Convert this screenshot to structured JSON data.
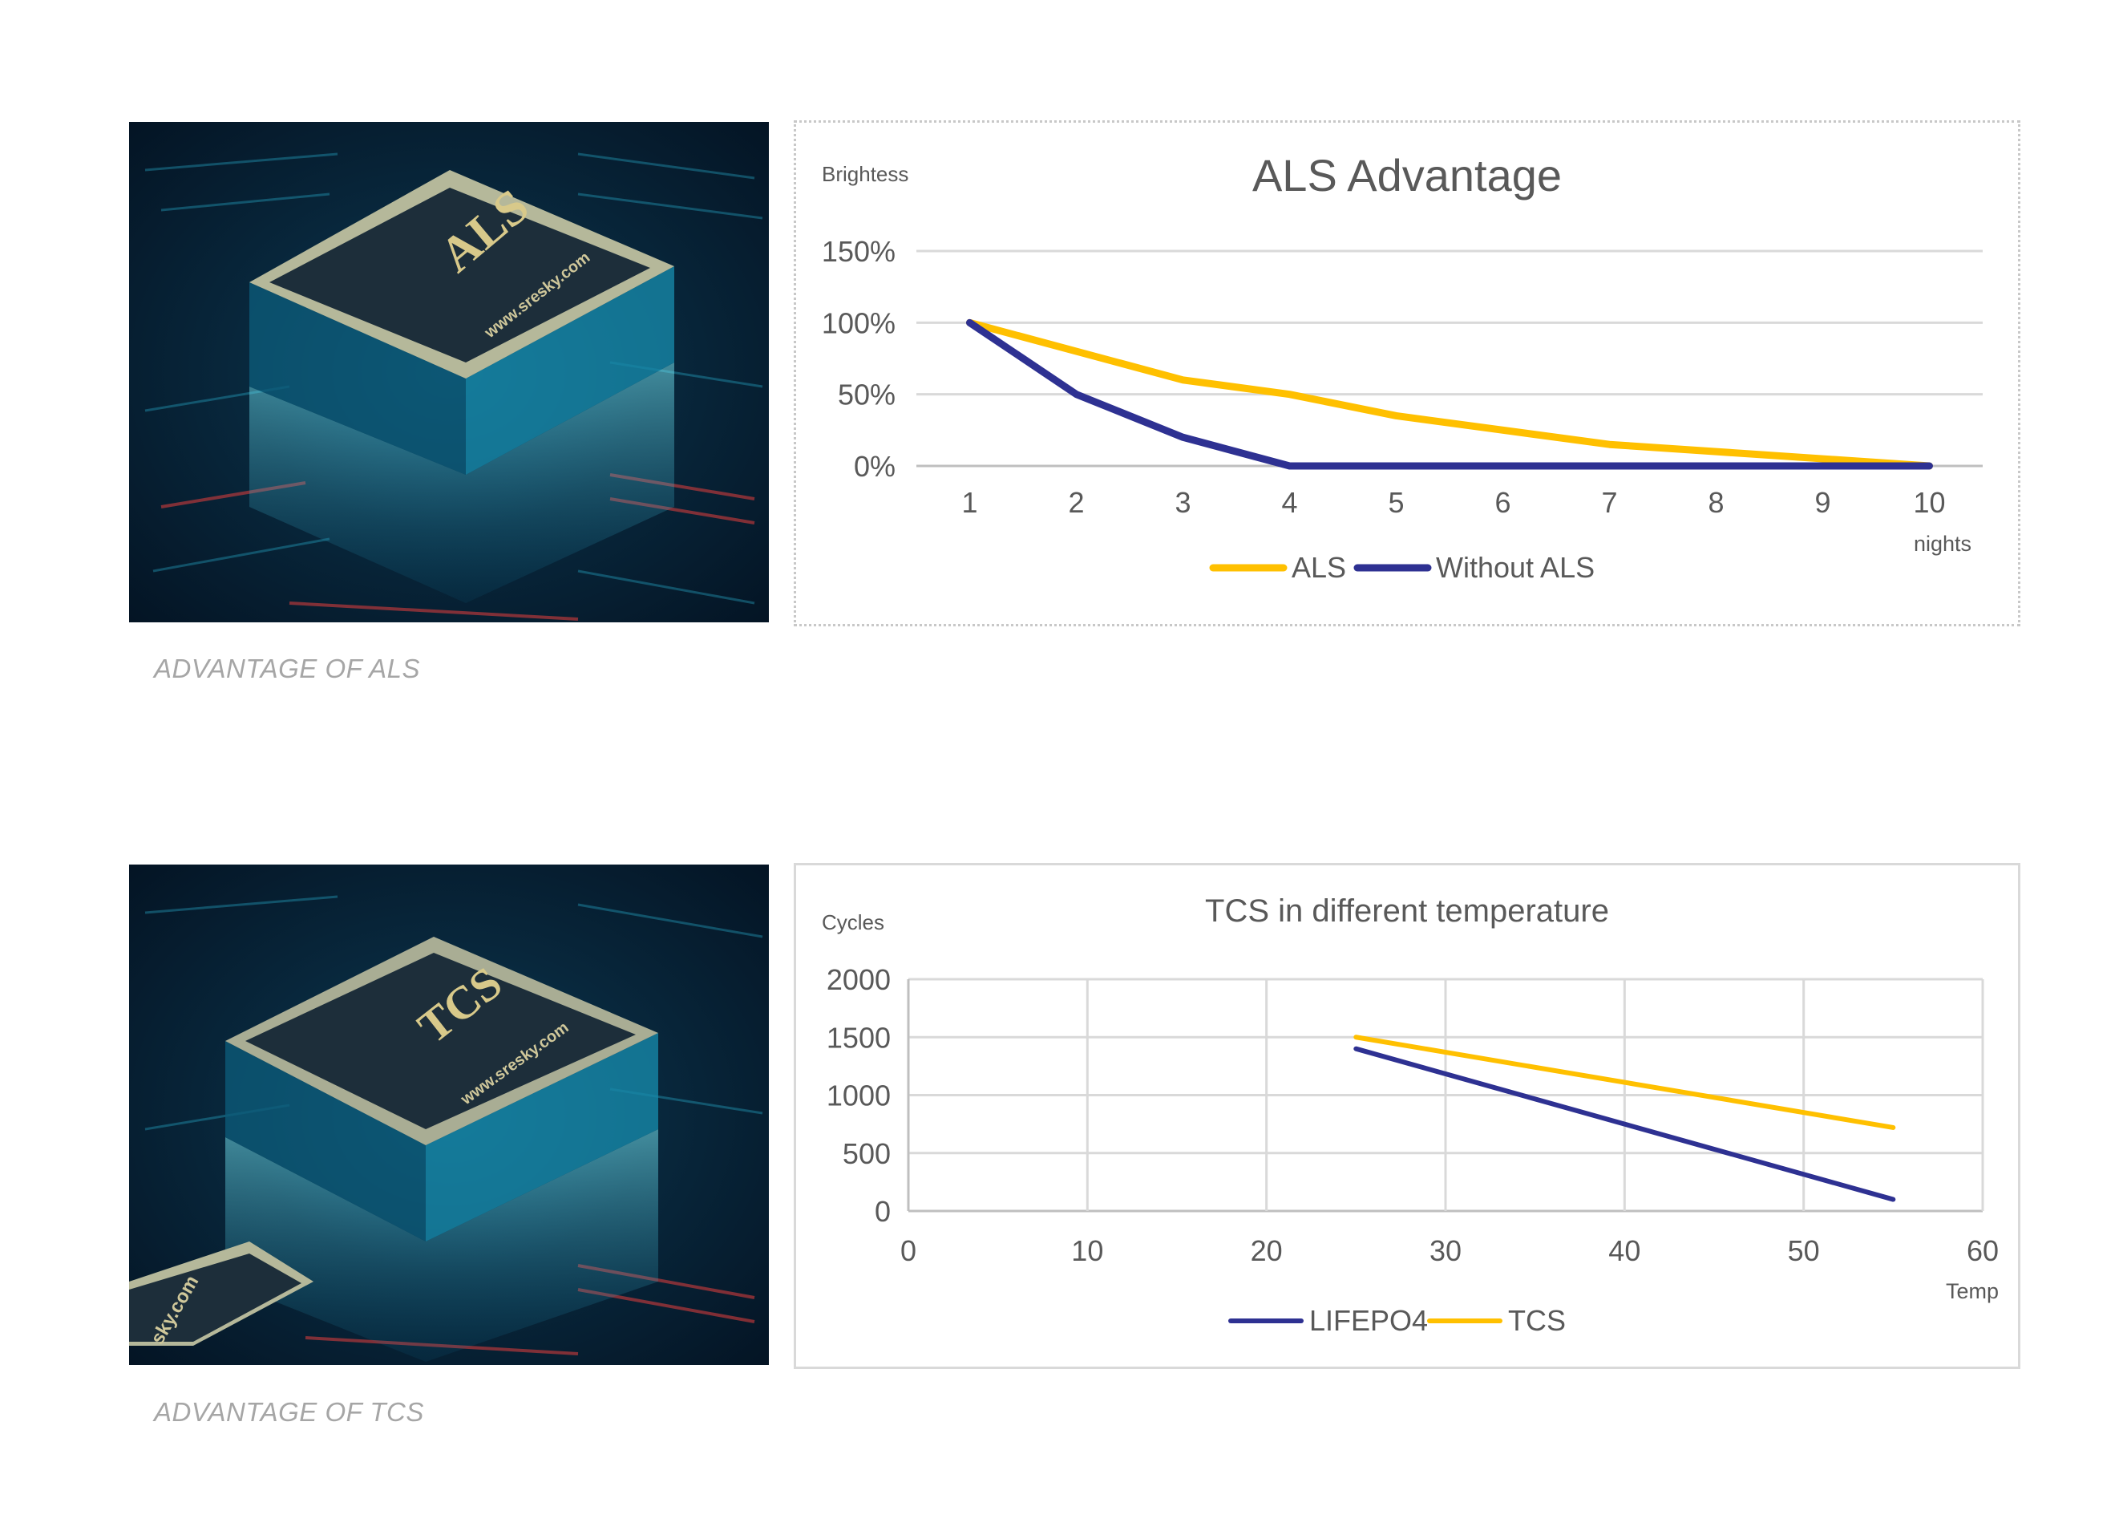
{
  "sections": [
    {
      "caption": "ADVANTAGE OF ALS",
      "image": {
        "chip_label": "ALS",
        "chip_url": "www.sresky.com"
      }
    },
    {
      "caption": "ADVANTAGE OF TCS",
      "image": {
        "chip_label": "TCS",
        "chip_url": "www.sresky.com",
        "corner_text": "sky.com"
      }
    }
  ],
  "colors": {
    "yellow": "#FFC000",
    "navy": "#2E3192",
    "grid": "#d9d9d9",
    "text": "#595959"
  },
  "chart_data": [
    {
      "type": "line",
      "title": "ALS Advantage",
      "ylabel": "Brightess",
      "xlabel": "nights",
      "categories": [
        "1",
        "2",
        "3",
        "4",
        "5",
        "6",
        "7",
        "8",
        "9",
        "10"
      ],
      "y_tick_labels": [
        "0%",
        "50%",
        "100%",
        "150%"
      ],
      "ylim": [
        0,
        150
      ],
      "grid": "horizontal",
      "legend_position": "bottom",
      "series": [
        {
          "name": "ALS",
          "color": "#FFC000",
          "values": [
            100,
            80,
            60,
            50,
            35,
            25,
            15,
            10,
            5,
            0
          ]
        },
        {
          "name": "Without ALS",
          "color": "#2E3192",
          "values": [
            100,
            50,
            20,
            0,
            0,
            0,
            0,
            0,
            0,
            0
          ]
        }
      ]
    },
    {
      "type": "scatter",
      "title": "TCS in different temperature",
      "ylabel": "Cycles",
      "xlabel": "Temp",
      "x_ticks": [
        0,
        10,
        20,
        30,
        40,
        50,
        60
      ],
      "y_ticks": [
        0,
        500,
        1000,
        1500,
        2000
      ],
      "xlim": [
        0,
        60
      ],
      "ylim": [
        0,
        2000
      ],
      "grid": "both",
      "legend_position": "bottom",
      "series": [
        {
          "name": "LIFEPO4",
          "color": "#2E3192",
          "points": [
            [
              25,
              1400
            ],
            [
              55,
              100
            ]
          ]
        },
        {
          "name": "TCS",
          "color": "#FFC000",
          "points": [
            [
              25,
              1500
            ],
            [
              55,
              720
            ]
          ]
        }
      ]
    }
  ]
}
